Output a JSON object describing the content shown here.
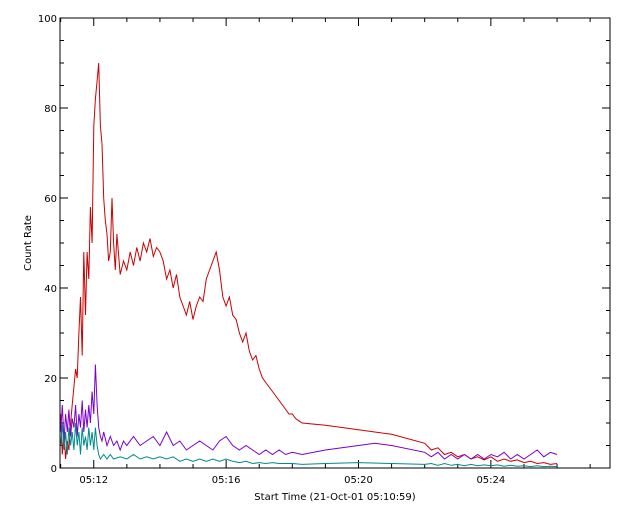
{
  "chart_data": {
    "type": "line",
    "xlabel": "Start Time (21-Oct-01 05:10:59)",
    "ylabel": "Count Rate",
    "ylim": [
      0,
      100
    ],
    "xlim_minutes": [
      10.98,
      27.6
    ],
    "x_ticks": [
      {
        "minute": 12,
        "label": "05:12"
      },
      {
        "minute": 16,
        "label": "05:16"
      },
      {
        "minute": 20,
        "label": "05:20"
      },
      {
        "minute": 24,
        "label": "05:24"
      }
    ],
    "y_ticks": [
      0,
      20,
      40,
      60,
      80,
      100
    ],
    "grid": false,
    "series": [
      {
        "color": "#cc0000",
        "points": [
          [
            11.0,
            12
          ],
          [
            11.05,
            3
          ],
          [
            11.1,
            8
          ],
          [
            11.15,
            2
          ],
          [
            11.2,
            6
          ],
          [
            11.25,
            4
          ],
          [
            11.3,
            10
          ],
          [
            11.35,
            14
          ],
          [
            11.4,
            18
          ],
          [
            11.45,
            22
          ],
          [
            11.5,
            20
          ],
          [
            11.55,
            30
          ],
          [
            11.6,
            38
          ],
          [
            11.65,
            25
          ],
          [
            11.7,
            48
          ],
          [
            11.75,
            34
          ],
          [
            11.8,
            48
          ],
          [
            11.85,
            42
          ],
          [
            11.9,
            58
          ],
          [
            11.95,
            50
          ],
          [
            12.0,
            76
          ],
          [
            12.05,
            82
          ],
          [
            12.1,
            86
          ],
          [
            12.15,
            90
          ],
          [
            12.2,
            76
          ],
          [
            12.25,
            72
          ],
          [
            12.3,
            60
          ],
          [
            12.35,
            55
          ],
          [
            12.4,
            52
          ],
          [
            12.45,
            46
          ],
          [
            12.5,
            48
          ],
          [
            12.55,
            60
          ],
          [
            12.6,
            50
          ],
          [
            12.65,
            44
          ],
          [
            12.7,
            52
          ],
          [
            12.8,
            43
          ],
          [
            12.9,
            46
          ],
          [
            13.0,
            44
          ],
          [
            13.1,
            48
          ],
          [
            13.2,
            45
          ],
          [
            13.3,
            49
          ],
          [
            13.4,
            46
          ],
          [
            13.5,
            50
          ],
          [
            13.6,
            48
          ],
          [
            13.7,
            51
          ],
          [
            13.8,
            47
          ],
          [
            13.9,
            49
          ],
          [
            14.0,
            48
          ],
          [
            14.1,
            46
          ],
          [
            14.2,
            42
          ],
          [
            14.3,
            44
          ],
          [
            14.4,
            40
          ],
          [
            14.5,
            43
          ],
          [
            14.6,
            38
          ],
          [
            14.7,
            36
          ],
          [
            14.8,
            34
          ],
          [
            14.9,
            37
          ],
          [
            15.0,
            33
          ],
          [
            15.1,
            36
          ],
          [
            15.2,
            38
          ],
          [
            15.3,
            37
          ],
          [
            15.4,
            42
          ],
          [
            15.5,
            44
          ],
          [
            15.6,
            46
          ],
          [
            15.7,
            48
          ],
          [
            15.8,
            44
          ],
          [
            15.9,
            38
          ],
          [
            16.0,
            36
          ],
          [
            16.1,
            38
          ],
          [
            16.2,
            34
          ],
          [
            16.3,
            33
          ],
          [
            16.4,
            30
          ],
          [
            16.5,
            28
          ],
          [
            16.6,
            30
          ],
          [
            16.7,
            26
          ],
          [
            16.8,
            24
          ],
          [
            16.9,
            25
          ],
          [
            17.0,
            22
          ],
          [
            17.1,
            20
          ],
          [
            17.2,
            19
          ],
          [
            17.3,
            18
          ],
          [
            17.4,
            17
          ],
          [
            17.5,
            16
          ],
          [
            17.6,
            15
          ],
          [
            17.7,
            14
          ],
          [
            17.8,
            13
          ],
          [
            17.9,
            12
          ],
          [
            18.0,
            12
          ],
          [
            18.1,
            11
          ],
          [
            18.2,
            10.5
          ],
          [
            18.3,
            10
          ],
          [
            19.0,
            9.5
          ],
          [
            20.0,
            8.5
          ],
          [
            21.0,
            7.5
          ],
          [
            22.0,
            5.5
          ],
          [
            22.2,
            4
          ],
          [
            22.4,
            4.5
          ],
          [
            22.6,
            3
          ],
          [
            22.8,
            3.5
          ],
          [
            23.0,
            2.5
          ],
          [
            23.2,
            3
          ],
          [
            23.4,
            2
          ],
          [
            23.6,
            2.5
          ],
          [
            23.8,
            1.8
          ],
          [
            24.0,
            2.5
          ],
          [
            24.2,
            1.5
          ],
          [
            24.4,
            2
          ],
          [
            24.6,
            1.5
          ],
          [
            24.8,
            1.8
          ],
          [
            25.0,
            1.2
          ],
          [
            25.2,
            1.5
          ],
          [
            25.4,
            1.0
          ],
          [
            25.6,
            1.2
          ],
          [
            25.8,
            0.8
          ],
          [
            26.0,
            1.0
          ]
        ]
      },
      {
        "color": "#7a00cc",
        "points": [
          [
            11.0,
            8
          ],
          [
            11.05,
            14
          ],
          [
            11.1,
            6
          ],
          [
            11.15,
            12
          ],
          [
            11.2,
            8
          ],
          [
            11.25,
            13
          ],
          [
            11.3,
            7
          ],
          [
            11.35,
            11
          ],
          [
            11.4,
            9
          ],
          [
            11.45,
            14
          ],
          [
            11.5,
            7
          ],
          [
            11.55,
            12
          ],
          [
            11.6,
            9
          ],
          [
            11.65,
            15
          ],
          [
            11.7,
            8
          ],
          [
            11.75,
            13
          ],
          [
            11.8,
            9
          ],
          [
            11.85,
            14
          ],
          [
            11.9,
            10
          ],
          [
            11.95,
            17
          ],
          [
            12.0,
            12
          ],
          [
            12.05,
            23
          ],
          [
            12.1,
            14
          ],
          [
            12.15,
            9
          ],
          [
            12.2,
            7
          ],
          [
            12.25,
            6
          ],
          [
            12.3,
            8
          ],
          [
            12.4,
            5
          ],
          [
            12.5,
            7
          ],
          [
            12.6,
            5
          ],
          [
            12.7,
            6
          ],
          [
            12.8,
            4
          ],
          [
            12.9,
            6
          ],
          [
            13.0,
            5
          ],
          [
            13.2,
            7
          ],
          [
            13.4,
            5
          ],
          [
            13.6,
            6
          ],
          [
            13.8,
            7
          ],
          [
            14.0,
            5
          ],
          [
            14.2,
            8
          ],
          [
            14.4,
            5
          ],
          [
            14.6,
            6
          ],
          [
            14.8,
            4
          ],
          [
            15.0,
            5
          ],
          [
            15.2,
            6
          ],
          [
            15.4,
            5
          ],
          [
            15.6,
            4
          ],
          [
            15.8,
            6
          ],
          [
            16.0,
            7
          ],
          [
            16.2,
            5
          ],
          [
            16.4,
            4
          ],
          [
            16.6,
            5
          ],
          [
            16.8,
            4
          ],
          [
            17.0,
            3
          ],
          [
            17.2,
            4
          ],
          [
            17.4,
            3
          ],
          [
            17.6,
            4
          ],
          [
            17.8,
            3
          ],
          [
            18.0,
            3.5
          ],
          [
            18.3,
            3
          ],
          [
            19.0,
            4
          ],
          [
            20.0,
            5
          ],
          [
            20.5,
            5.5
          ],
          [
            21.0,
            5
          ],
          [
            22.0,
            3.5
          ],
          [
            22.2,
            2.5
          ],
          [
            22.4,
            3.5
          ],
          [
            22.6,
            2
          ],
          [
            22.8,
            3
          ],
          [
            23.0,
            2
          ],
          [
            23.2,
            3
          ],
          [
            23.4,
            2
          ],
          [
            23.6,
            3
          ],
          [
            23.8,
            2
          ],
          [
            24.0,
            3
          ],
          [
            24.2,
            2.5
          ],
          [
            24.4,
            3.5
          ],
          [
            24.6,
            2
          ],
          [
            24.8,
            3
          ],
          [
            25.0,
            2
          ],
          [
            25.2,
            3
          ],
          [
            25.4,
            4
          ],
          [
            25.6,
            2.5
          ],
          [
            25.8,
            3.5
          ],
          [
            26.0,
            3
          ]
        ]
      },
      {
        "color": "#008b8b",
        "points": [
          [
            11.0,
            5
          ],
          [
            11.05,
            10
          ],
          [
            11.1,
            4
          ],
          [
            11.15,
            8
          ],
          [
            11.2,
            3
          ],
          [
            11.25,
            9
          ],
          [
            11.3,
            5
          ],
          [
            11.35,
            8
          ],
          [
            11.4,
            4
          ],
          [
            11.45,
            10
          ],
          [
            11.5,
            5
          ],
          [
            11.55,
            8
          ],
          [
            11.6,
            3
          ],
          [
            11.65,
            9
          ],
          [
            11.7,
            5
          ],
          [
            11.75,
            7
          ],
          [
            11.8,
            4
          ],
          [
            11.85,
            9
          ],
          [
            11.9,
            5
          ],
          [
            11.95,
            8
          ],
          [
            12.0,
            4
          ],
          [
            12.05,
            9
          ],
          [
            12.1,
            5
          ],
          [
            12.15,
            3
          ],
          [
            12.2,
            2
          ],
          [
            12.3,
            3
          ],
          [
            12.4,
            2
          ],
          [
            12.5,
            3
          ],
          [
            12.6,
            2
          ],
          [
            12.8,
            2.5
          ],
          [
            13.0,
            2
          ],
          [
            13.2,
            3
          ],
          [
            13.4,
            2
          ],
          [
            13.6,
            2.5
          ],
          [
            13.8,
            2
          ],
          [
            14.0,
            2.5
          ],
          [
            14.2,
            2
          ],
          [
            14.4,
            2.5
          ],
          [
            14.6,
            1.5
          ],
          [
            14.8,
            2
          ],
          [
            15.0,
            1.5
          ],
          [
            15.2,
            2
          ],
          [
            15.4,
            1.5
          ],
          [
            15.6,
            2
          ],
          [
            15.8,
            1.5
          ],
          [
            16.0,
            2
          ],
          [
            16.2,
            1.5
          ],
          [
            16.4,
            1.2
          ],
          [
            16.6,
            1.5
          ],
          [
            16.8,
            1
          ],
          [
            17.0,
            1.2
          ],
          [
            17.2,
            1
          ],
          [
            17.4,
            1.2
          ],
          [
            17.6,
            1
          ],
          [
            17.8,
            1
          ],
          [
            18.0,
            1
          ],
          [
            18.3,
            0.8
          ],
          [
            19.0,
            1
          ],
          [
            20.0,
            1.2
          ],
          [
            21.0,
            1
          ],
          [
            22.0,
            0.8
          ],
          [
            22.2,
            1
          ],
          [
            22.4,
            0.6
          ],
          [
            22.6,
            1
          ],
          [
            22.8,
            0.6
          ],
          [
            23.0,
            0.8
          ],
          [
            23.2,
            0.5
          ],
          [
            23.4,
            0.8
          ],
          [
            23.6,
            0.5
          ],
          [
            23.8,
            0.7
          ],
          [
            24.0,
            0.5
          ],
          [
            24.2,
            0.7
          ],
          [
            24.4,
            0.4
          ],
          [
            24.6,
            0.6
          ],
          [
            24.8,
            0.4
          ],
          [
            25.0,
            0.5
          ],
          [
            25.2,
            0.3
          ],
          [
            25.4,
            0.5
          ],
          [
            25.6,
            0.3
          ],
          [
            25.8,
            0.4
          ],
          [
            26.0,
            0.3
          ]
        ]
      }
    ]
  }
}
